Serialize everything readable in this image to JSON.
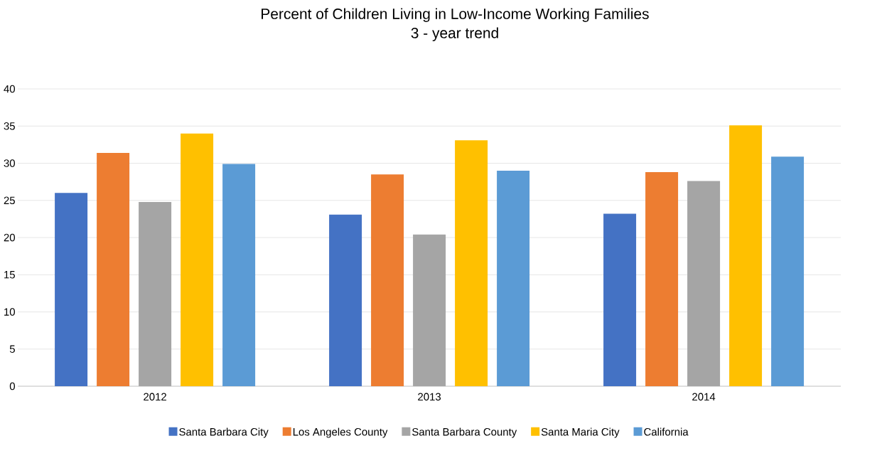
{
  "chart_data": {
    "type": "bar",
    "title": "Percent of Children Living in Low-Income Working Families",
    "subtitle": "3 - year trend",
    "categories": [
      "2012",
      "2013",
      "2014"
    ],
    "series": [
      {
        "name": "Santa Barbara City",
        "color": "#4472c4",
        "values": [
          26.0,
          23.1,
          23.2
        ]
      },
      {
        "name": "Los Angeles County",
        "color": "#ed7d31",
        "values": [
          31.4,
          28.5,
          28.8
        ]
      },
      {
        "name": "Santa Barbara County",
        "color": "#a5a5a5",
        "values": [
          24.8,
          20.4,
          27.6
        ]
      },
      {
        "name": "Santa Maria City",
        "color": "#ffc000",
        "values": [
          34.0,
          33.1,
          35.1
        ]
      },
      {
        "name": "California",
        "color": "#5b9bd5",
        "values": [
          29.9,
          29.0,
          30.9
        ]
      }
    ],
    "ylim": [
      0,
      40
    ],
    "yticks": [
      0,
      5,
      10,
      15,
      20,
      25,
      30,
      35,
      40
    ],
    "grid": "y",
    "legend": "bottom"
  }
}
